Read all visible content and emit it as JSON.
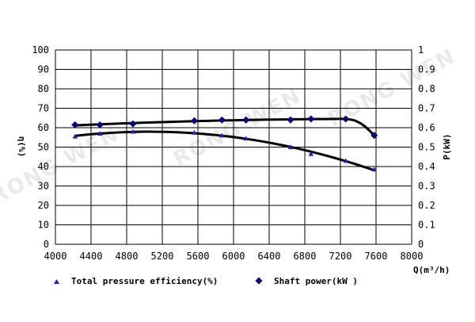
{
  "chart_data": {
    "type": "scatter",
    "x_label": "Q(m³/h)",
    "y_label_left": "η(%)",
    "y_label_right": "P(kW)",
    "xlim": [
      4000,
      8000
    ],
    "ylim_left": [
      0,
      100
    ],
    "ylim_right": [
      0,
      1
    ],
    "x_ticks": [
      "4000",
      "4400",
      "4800",
      "5200",
      "5600",
      "6000",
      "6400",
      "6800",
      "7200",
      "7600",
      "8000"
    ],
    "y_ticks_left": [
      "0",
      "10",
      "20",
      "30",
      "40",
      "50",
      "60",
      "70",
      "80",
      "90",
      "100"
    ],
    "y_ticks_right": [
      "0",
      "0.1",
      "0.2",
      "0.3",
      "0.4",
      "0.5",
      "0.6",
      "0.7",
      "0.8",
      "0.9",
      "1"
    ],
    "grid": true,
    "legend_position": "bottom",
    "series": [
      {
        "name": "Total pressure efficiency(%)",
        "marker": "triangle",
        "axis": "left",
        "color": "#1f1fbf",
        "x": [
          4220,
          4500,
          4870,
          5560,
          5870,
          6140,
          6640,
          6870,
          7260,
          7580
        ],
        "y": [
          55.5,
          57,
          58,
          57.5,
          56,
          54.5,
          50,
          46.5,
          43,
          38.5
        ]
      },
      {
        "name": "Shaft power(kW )",
        "marker": "diamond",
        "axis": "right",
        "color": "#00007a",
        "x": [
          4220,
          4500,
          4870,
          5560,
          5870,
          6140,
          6640,
          6870,
          7260,
          7580
        ],
        "y": [
          0.615,
          0.615,
          0.62,
          0.635,
          0.64,
          0.64,
          0.64,
          0.645,
          0.645,
          0.56
        ]
      }
    ],
    "watermark": "RONG WEN",
    "curve_color": "#000000",
    "grid_color": "#000000"
  }
}
